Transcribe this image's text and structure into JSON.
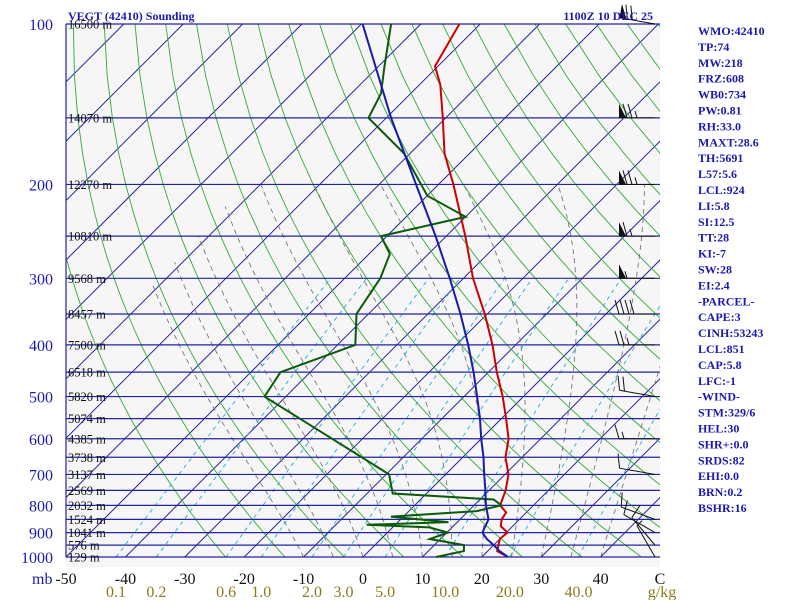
{
  "title_left": "VEGT (42410) Sounding",
  "title_right": "1100Z 10 DEC 25",
  "pressure_unit": "mb",
  "mixing_unit": "g/kg",
  "indices": [
    "WMO:42410",
    "TP:74",
    "MW:218",
    "FRZ:608",
    "WB0:734",
    "PW:0.81",
    "RH:33.0",
    "MAXT:28.6",
    "TH:5691",
    "L57:5.6",
    "LCL:924",
    "LI:5.8",
    "SI:12.5",
    "TT:28",
    "KI:-7",
    "SW:28",
    "EI:2.4",
    "-PARCEL-",
    "CAPE:3",
    "CINH:53243",
    "LCL:851",
    "CAP:5.8",
    "LFC:-1",
    "-WIND-",
    "STM:329/6",
    "HEL:30",
    "SHR+:0.0",
    "SRDS:82",
    "EHI:0.0",
    "BRN:0.2",
    "BSHR:16"
  ],
  "chart_data": {
    "type": "line",
    "title": "VEGT (42410) Sounding 1100Z 10 DEC 25",
    "xlabel": "",
    "ylabel": "mb",
    "x_range": [
      -50,
      50
    ],
    "y_range": [
      1000,
      100
    ],
    "y_scale": "log",
    "pressure_ticks": [
      100,
      200,
      300,
      400,
      500,
      600,
      700,
      800,
      900,
      1000
    ],
    "temperature_ticks": [
      "-50",
      "-40",
      "-30",
      "-20",
      "-10",
      "0",
      "10",
      "20",
      "30",
      "40",
      "C"
    ],
    "mixing_ratio_ticks": [
      "0.1",
      "0.2",
      "0.6",
      "1.0",
      "2.0",
      "3.0",
      "5.0",
      "10.0",
      "20.0",
      "40.0"
    ],
    "height_labels": [
      {
        "p": 100,
        "label": "16500 m"
      },
      {
        "p": 150,
        "label": "14070 m"
      },
      {
        "p": 200,
        "label": "12270 m"
      },
      {
        "p": 250,
        "label": "10810 m"
      },
      {
        "p": 300,
        "label": "9568 m"
      },
      {
        "p": 350,
        "label": "8457 m"
      },
      {
        "p": 400,
        "label": "7500 m"
      },
      {
        "p": 450,
        "label": "6518 m"
      },
      {
        "p": 500,
        "label": "5820 m"
      },
      {
        "p": 550,
        "label": "5074 m"
      },
      {
        "p": 600,
        "label": "4385 m"
      },
      {
        "p": 650,
        "label": "3738 m"
      },
      {
        "p": 700,
        "label": "3137 m"
      },
      {
        "p": 750,
        "label": "2569 m"
      },
      {
        "p": 800,
        "label": "2032 m"
      },
      {
        "p": 850,
        "label": "1524 m"
      },
      {
        "p": 900,
        "label": "1041 m"
      },
      {
        "p": 950,
        "label": "576 m"
      },
      {
        "p": 1000,
        "label": "129 m"
      }
    ],
    "series": [
      {
        "name": "Temperature",
        "color": "#cc0000",
        "points": [
          [
            1000,
            24.4
          ],
          [
            975,
            21.6
          ],
          [
            925,
            20
          ],
          [
            900,
            20.2
          ],
          [
            875,
            18
          ],
          [
            850,
            17
          ],
          [
            825,
            16.6
          ],
          [
            800,
            14.4
          ],
          [
            775,
            13.6
          ],
          [
            750,
            12.8
          ],
          [
            700,
            10.6
          ],
          [
            650,
            7.2
          ],
          [
            600,
            4.6
          ],
          [
            550,
            0.8
          ],
          [
            500,
            -3.5
          ],
          [
            450,
            -8.6
          ],
          [
            400,
            -13.9
          ],
          [
            350,
            -20.4
          ],
          [
            300,
            -28.4
          ],
          [
            250,
            -36.8
          ],
          [
            200,
            -47.5
          ],
          [
            175,
            -54.2
          ],
          [
            150,
            -60.5
          ],
          [
            130,
            -66.5
          ],
          [
            120,
            -70.5
          ],
          [
            100,
            -73.5
          ]
        ]
      },
      {
        "name": "Dewpoint",
        "color": "#0a5a0a",
        "points": [
          [
            1000,
            12.3
          ],
          [
            975,
            16
          ],
          [
            950,
            15
          ],
          [
            925,
            8.2
          ],
          [
            900,
            10.2
          ],
          [
            880,
            6.2
          ],
          [
            870,
            -4.8
          ],
          [
            860,
            8.5
          ],
          [
            840,
            -2.1
          ],
          [
            820,
            11.4
          ],
          [
            800,
            14.6
          ],
          [
            780,
            12.3
          ],
          [
            760,
            -5.7
          ],
          [
            700,
            -9.5
          ],
          [
            600,
            -25.1
          ],
          [
            500,
            -43.6
          ],
          [
            450,
            -45
          ],
          [
            400,
            -37
          ],
          [
            350,
            -42
          ],
          [
            300,
            -44
          ],
          [
            270,
            -46.5
          ],
          [
            250,
            -51
          ],
          [
            230,
            -40
          ],
          [
            210,
            -50
          ],
          [
            175,
            -61
          ],
          [
            150,
            -73
          ],
          [
            135,
            -75
          ],
          [
            120,
            -79
          ],
          [
            100,
            -85
          ]
        ]
      },
      {
        "name": "Parcel",
        "color": "#1a1aaa",
        "points": [
          [
            1000,
            24.4
          ],
          [
            975,
            22
          ],
          [
            950,
            20
          ],
          [
            925,
            17.8
          ],
          [
            900,
            16
          ],
          [
            875,
            15.4
          ],
          [
            850,
            14.8
          ],
          [
            800,
            12
          ],
          [
            750,
            9.4
          ],
          [
            700,
            6.5
          ],
          [
            650,
            3.5
          ],
          [
            600,
            0
          ],
          [
            550,
            -3.6
          ],
          [
            500,
            -7.8
          ],
          [
            450,
            -12.5
          ],
          [
            400,
            -18
          ],
          [
            350,
            -24.5
          ],
          [
            300,
            -32.3
          ],
          [
            250,
            -41.8
          ],
          [
            200,
            -53.8
          ],
          [
            150,
            -69.2
          ],
          [
            100,
            -89.8
          ]
        ]
      }
    ],
    "wind_barbs": [
      {
        "p": 1000,
        "dir": 330,
        "kt": 5
      },
      {
        "p": 950,
        "dir": 320,
        "kt": 10
      },
      {
        "p": 900,
        "dir": 300,
        "kt": 10
      },
      {
        "p": 850,
        "dir": 290,
        "kt": 10
      },
      {
        "p": 700,
        "dir": 280,
        "kt": 10
      },
      {
        "p": 600,
        "dir": 270,
        "kt": 15
      },
      {
        "p": 500,
        "dir": 280,
        "kt": 20
      },
      {
        "p": 400,
        "dir": 270,
        "kt": 25
      },
      {
        "p": 350,
        "dir": 270,
        "kt": 40
      },
      {
        "p": 300,
        "dir": 270,
        "kt": 55
      },
      {
        "p": 250,
        "dir": 270,
        "kt": 65
      },
      {
        "p": 200,
        "dir": 270,
        "kt": 75
      },
      {
        "p": 150,
        "dir": 270,
        "kt": 75
      },
      {
        "p": 100,
        "dir": 280,
        "kt": 70
      }
    ]
  }
}
